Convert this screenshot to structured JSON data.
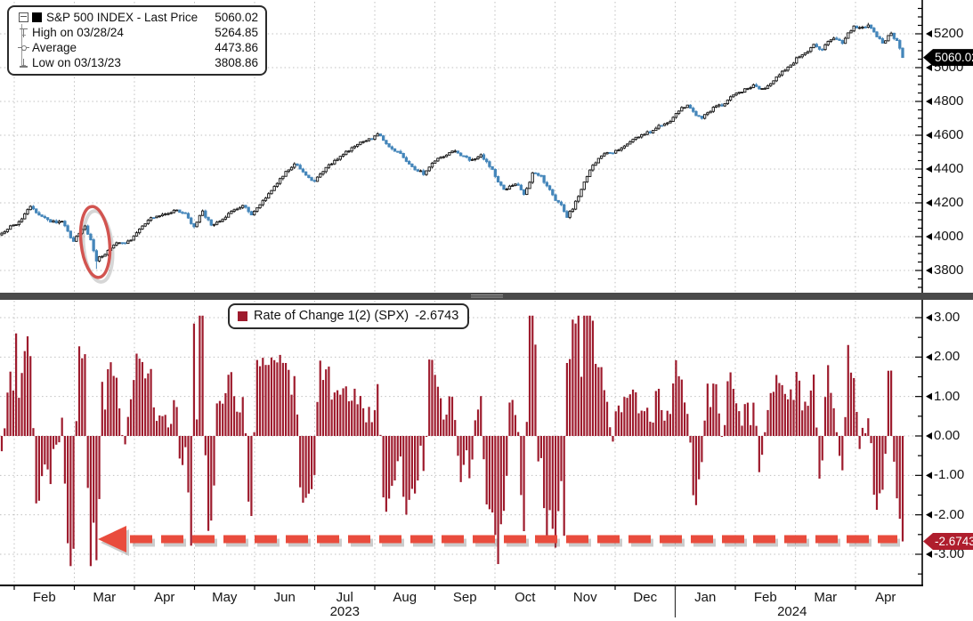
{
  "colors": {
    "candle_up": "#141414",
    "candle_down": "#4586BA",
    "roc_bar": "#9E1B2D",
    "badge_top_bg": "#000000",
    "badge_bottom_bg": "#AF1E2D",
    "arrow_red": "#E94C3D",
    "ellipse_red": "#D25450",
    "grid": "#C0C0C0",
    "axis": "#000000"
  },
  "top_panel": {
    "legend_rows": [
      {
        "icon": "expander-icon",
        "swatch": "black",
        "label": "S&P 500 INDEX - Last Price",
        "value": "5060.02"
      },
      {
        "icon": "high-marker-icon",
        "label": "High on 03/28/24",
        "value": "5264.85"
      },
      {
        "icon": "average-marker-icon",
        "label": "Average",
        "value": "4473.86"
      },
      {
        "icon": "low-marker-icon",
        "label": "Low on 03/13/23",
        "value": "3808.86"
      }
    ],
    "badge": "5060.02",
    "y_ticks": [
      "5200",
      "5000",
      "4800",
      "4600",
      "4400",
      "4200",
      "4000",
      "3800"
    ]
  },
  "bottom_panel": {
    "legend": {
      "label": "Rate of Change 1(2) (SPX)",
      "value": "-2.6743"
    },
    "badge": "-2.6743",
    "y_ticks": [
      "3.00",
      "2.00",
      "1.00",
      "0.00",
      "-1.00",
      "-2.00",
      "-3.00"
    ]
  },
  "x_axis": {
    "months": [
      "Feb",
      "Mar",
      "Apr",
      "May",
      "Jun",
      "Jul",
      "Aug",
      "Sep",
      "Oct",
      "Nov",
      "Dec",
      "Jan",
      "Feb",
      "Mar",
      "Apr"
    ],
    "years": [
      "2023",
      "2024"
    ]
  },
  "chart_data": [
    {
      "type": "candlestick",
      "title": "S&P 500 INDEX - Last Price",
      "last": 5060.02,
      "high": 5264.85,
      "high_on": "03/28/24",
      "average": 4473.86,
      "low": 3808.86,
      "low_on": "03/13/23",
      "x_range": [
        "late Jan 2023",
        "mid Apr 2024"
      ],
      "ylim": [
        3663,
        5400
      ],
      "y_tick_values": [
        5200,
        5000,
        4800,
        4600,
        4400,
        4200,
        4000,
        3800
      ],
      "n_days": 315,
      "anchors": [
        [
          0,
          4019
        ],
        [
          6,
          4090
        ],
        [
          10,
          4179
        ],
        [
          14,
          4125
        ],
        [
          18,
          4090
        ],
        [
          21,
          4080
        ],
        [
          25,
          3972
        ],
        [
          29,
          4050
        ],
        [
          31,
          3975
        ],
        [
          33,
          3856
        ],
        [
          36,
          3900
        ],
        [
          40,
          3950
        ],
        [
          45,
          3971
        ],
        [
          48,
          4030
        ],
        [
          52,
          4105
        ],
        [
          57,
          4140
        ],
        [
          61,
          4160
        ],
        [
          64,
          4130
        ],
        [
          67,
          4057
        ],
        [
          70,
          4160
        ],
        [
          73,
          4065
        ],
        [
          78,
          4125
        ],
        [
          84,
          4192
        ],
        [
          87,
          4118
        ],
        [
          91,
          4200
        ],
        [
          95,
          4285
        ],
        [
          99,
          4380
        ],
        [
          102,
          4420
        ],
        [
          105,
          4390
        ],
        [
          109,
          4335
        ],
        [
          113,
          4410
        ],
        [
          120,
          4505
        ],
        [
          126,
          4560
        ],
        [
          131,
          4600
        ],
        [
          135,
          4540
        ],
        [
          140,
          4470
        ],
        [
          144,
          4405
        ],
        [
          147,
          4375
        ],
        [
          151,
          4440
        ],
        [
          157,
          4520
        ],
        [
          160,
          4490
        ],
        [
          163,
          4455
        ],
        [
          167,
          4480
        ],
        [
          171,
          4390
        ],
        [
          175,
          4278
        ],
        [
          179,
          4320
        ],
        [
          182,
          4260
        ],
        [
          185,
          4378
        ],
        [
          188,
          4350
        ],
        [
          192,
          4240
        ],
        [
          195,
          4175
        ],
        [
          197,
          4120
        ],
        [
          199,
          4170
        ],
        [
          201,
          4240
        ],
        [
          205,
          4390
        ],
        [
          210,
          4500
        ],
        [
          214,
          4510
        ],
        [
          218,
          4550
        ],
        [
          221,
          4590
        ],
        [
          226,
          4620
        ],
        [
          230,
          4660
        ],
        [
          235,
          4720
        ],
        [
          239,
          4780
        ],
        [
          241,
          4745
        ],
        [
          244,
          4695
        ],
        [
          248,
          4760
        ],
        [
          251,
          4780
        ],
        [
          254,
          4838
        ],
        [
          258,
          4860
        ],
        [
          262,
          4900
        ],
        [
          266,
          4870
        ],
        [
          270,
          4955
        ],
        [
          274,
          5000
        ],
        [
          278,
          5070
        ],
        [
          281,
          5090
        ],
        [
          283,
          5135
        ],
        [
          286,
          5110
        ],
        [
          290,
          5178
        ],
        [
          293,
          5150
        ],
        [
          297,
          5240
        ],
        [
          300,
          5230
        ],
        [
          302,
          5250
        ],
        [
          304,
          5210
        ],
        [
          307,
          5150
        ],
        [
          310,
          5205
        ],
        [
          312,
          5160
        ],
        [
          314,
          5060.02
        ]
      ],
      "annotation": {
        "shape": "red-ellipse",
        "meaning": "circles the 03/13/23 low of 3808.86"
      }
    },
    {
      "type": "bar",
      "title": "Rate of Change 1(2) (SPX)",
      "last": -2.6743,
      "ylim": [
        -3.6,
        3.4
      ],
      "y_tick_values": [
        3,
        2,
        1,
        0,
        -1,
        -2,
        -3
      ],
      "forced_values": {
        "5": 2.6,
        "32": -2.2,
        "33": -3.15,
        "34": -1.6,
        "67": 2.85,
        "197": 1.85,
        "198": 1.95,
        "199": 2.95,
        "200": 2.85,
        "202": 1.5,
        "314": -2.6743
      },
      "annotation": {
        "shape": "red-dashed-arrow-left",
        "meaning": "points from the latest -2.6743 bar back to the early March 2023 downside spike"
      }
    }
  ]
}
